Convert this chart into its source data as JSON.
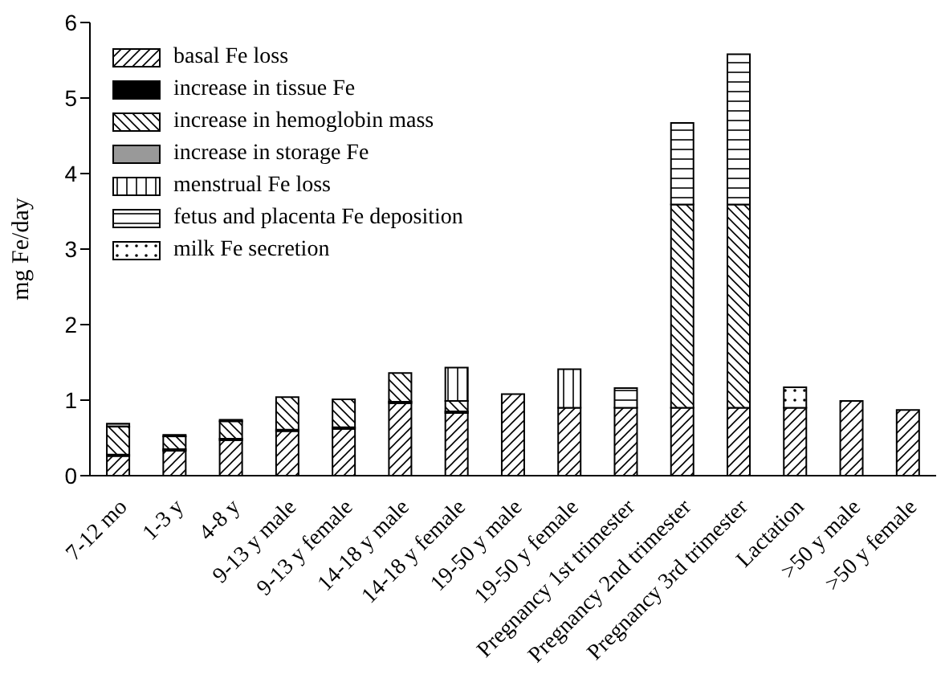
{
  "chart_data": {
    "type": "bar",
    "stacked": true,
    "ylabel": "mg Fe/day",
    "ylim": [
      0,
      6
    ],
    "yticks": [
      0,
      1,
      2,
      3,
      4,
      5,
      6
    ],
    "legend": "top left",
    "grid": false,
    "categories": [
      "7-12 mo",
      "1-3 y",
      "4-8 y",
      "9-13 y male",
      "9-13 y female",
      "14-18 y male",
      "14-18 y female",
      "19-50 y male",
      "19-50 y female",
      "Pregnancy 1st trimester",
      "Pregnancy 2nd trimester",
      "Pregnancy 3rd trimester",
      "Lactation",
      ">50 y male",
      ">50 y female"
    ],
    "series": [
      {
        "name": "basal Fe loss",
        "color": "#000000",
        "values": [
          0.26,
          0.33,
          0.47,
          0.59,
          0.62,
          0.96,
          0.83,
          1.08,
          0.9,
          0.9,
          0.9,
          0.9,
          0.9,
          0.99,
          0.87
        ]
      },
      {
        "name": "increase in tissue Fe",
        "color": "#000000",
        "values": [
          0.02,
          0.02,
          0.02,
          0.02,
          0.02,
          0.02,
          0.02,
          null,
          null,
          null,
          null,
          null,
          null,
          null,
          null
        ]
      },
      {
        "name": "increase in hemoglobin mass",
        "color": "#000000",
        "values": [
          0.37,
          0.17,
          0.23,
          0.43,
          0.37,
          0.38,
          0.14,
          null,
          null,
          null,
          2.69,
          2.69,
          null,
          null,
          null
        ]
      },
      {
        "name": "increase in storage Fe",
        "color": "#999999",
        "values": [
          0.04,
          0.02,
          0.02,
          null,
          null,
          null,
          null,
          null,
          null,
          null,
          null,
          null,
          null,
          null,
          null
        ]
      },
      {
        "name": "menstrual Fe loss",
        "color": "#000000",
        "values": [
          null,
          null,
          null,
          null,
          null,
          null,
          0.44,
          null,
          0.51,
          null,
          null,
          null,
          null,
          null,
          null
        ]
      },
      {
        "name": "fetus and placenta Fe deposition",
        "color": "#000000",
        "values": [
          null,
          null,
          null,
          null,
          null,
          null,
          null,
          null,
          null,
          0.26,
          1.08,
          1.99,
          null,
          null,
          null
        ]
      },
      {
        "name": "milk Fe secretion",
        "color": "#000000",
        "values": [
          null,
          null,
          null,
          null,
          null,
          null,
          null,
          null,
          null,
          null,
          null,
          null,
          0.27,
          null,
          null
        ]
      }
    ]
  }
}
